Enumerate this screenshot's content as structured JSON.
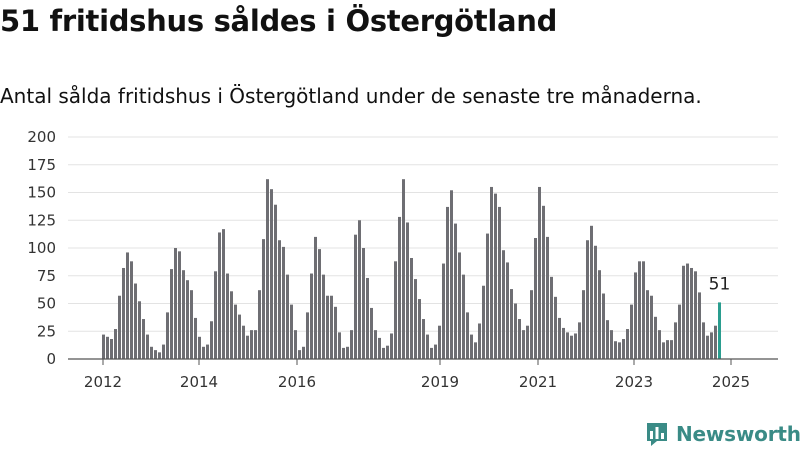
{
  "header": {
    "title": "51 fritidshus såldes i Östergötland",
    "subtitle": "Antal sålda fritidshus i Östergötland under de senaste tre månaderna."
  },
  "brand": {
    "name": "Newsworthy",
    "icon": "newsworthy-logo-icon",
    "color": "#3a8b86"
  },
  "chart_data": {
    "type": "bar",
    "title": "51 fritidshus såldes i Östergötland",
    "subtitle": "Antal sålda fritidshus i Östergötland under de senaste tre månaderna.",
    "xlabel": "",
    "ylabel": "",
    "ylim": [
      0,
      200
    ],
    "yticks": [
      0,
      25,
      50,
      75,
      100,
      125,
      150,
      175,
      200
    ],
    "xtick_labels": [
      "2012",
      "2014",
      "2016",
      "2019",
      "2021",
      "2023",
      "2025"
    ],
    "grid": true,
    "bar_color": "#6e6e73",
    "highlight_color": "#2a9d8f",
    "highlight_label": "51",
    "values": [
      22,
      20,
      18,
      27,
      57,
      82,
      96,
      88,
      68,
      52,
      36,
      22,
      11,
      8,
      6,
      13,
      42,
      81,
      100,
      97,
      80,
      71,
      62,
      37,
      20,
      11,
      13,
      34,
      79,
      114,
      117,
      77,
      61,
      49,
      40,
      30,
      21,
      26,
      26,
      62,
      108,
      162,
      153,
      139,
      107,
      101,
      76,
      49,
      26,
      8,
      11,
      42,
      77,
      110,
      99,
      76,
      57,
      57,
      47,
      24,
      10,
      11,
      26,
      112,
      125,
      100,
      73,
      46,
      26,
      19,
      10,
      12,
      23,
      88,
      128,
      162,
      123,
      91,
      72,
      54,
      36,
      22,
      10,
      13,
      30,
      86,
      137,
      152,
      122,
      96,
      76,
      42,
      22,
      15,
      32,
      66,
      113,
      155,
      149,
      137,
      98,
      87,
      63,
      50,
      36,
      26,
      30,
      62,
      109,
      155,
      138,
      110,
      74,
      56,
      37,
      28,
      24,
      21,
      23,
      33,
      62,
      107,
      120,
      102,
      80,
      59,
      35,
      26,
      16,
      15,
      18,
      27,
      49,
      78,
      88,
      88,
      62,
      57,
      38,
      26,
      15,
      17,
      17,
      33,
      49,
      84,
      86,
      82,
      79,
      60,
      33,
      21,
      24,
      30,
      51
    ]
  }
}
